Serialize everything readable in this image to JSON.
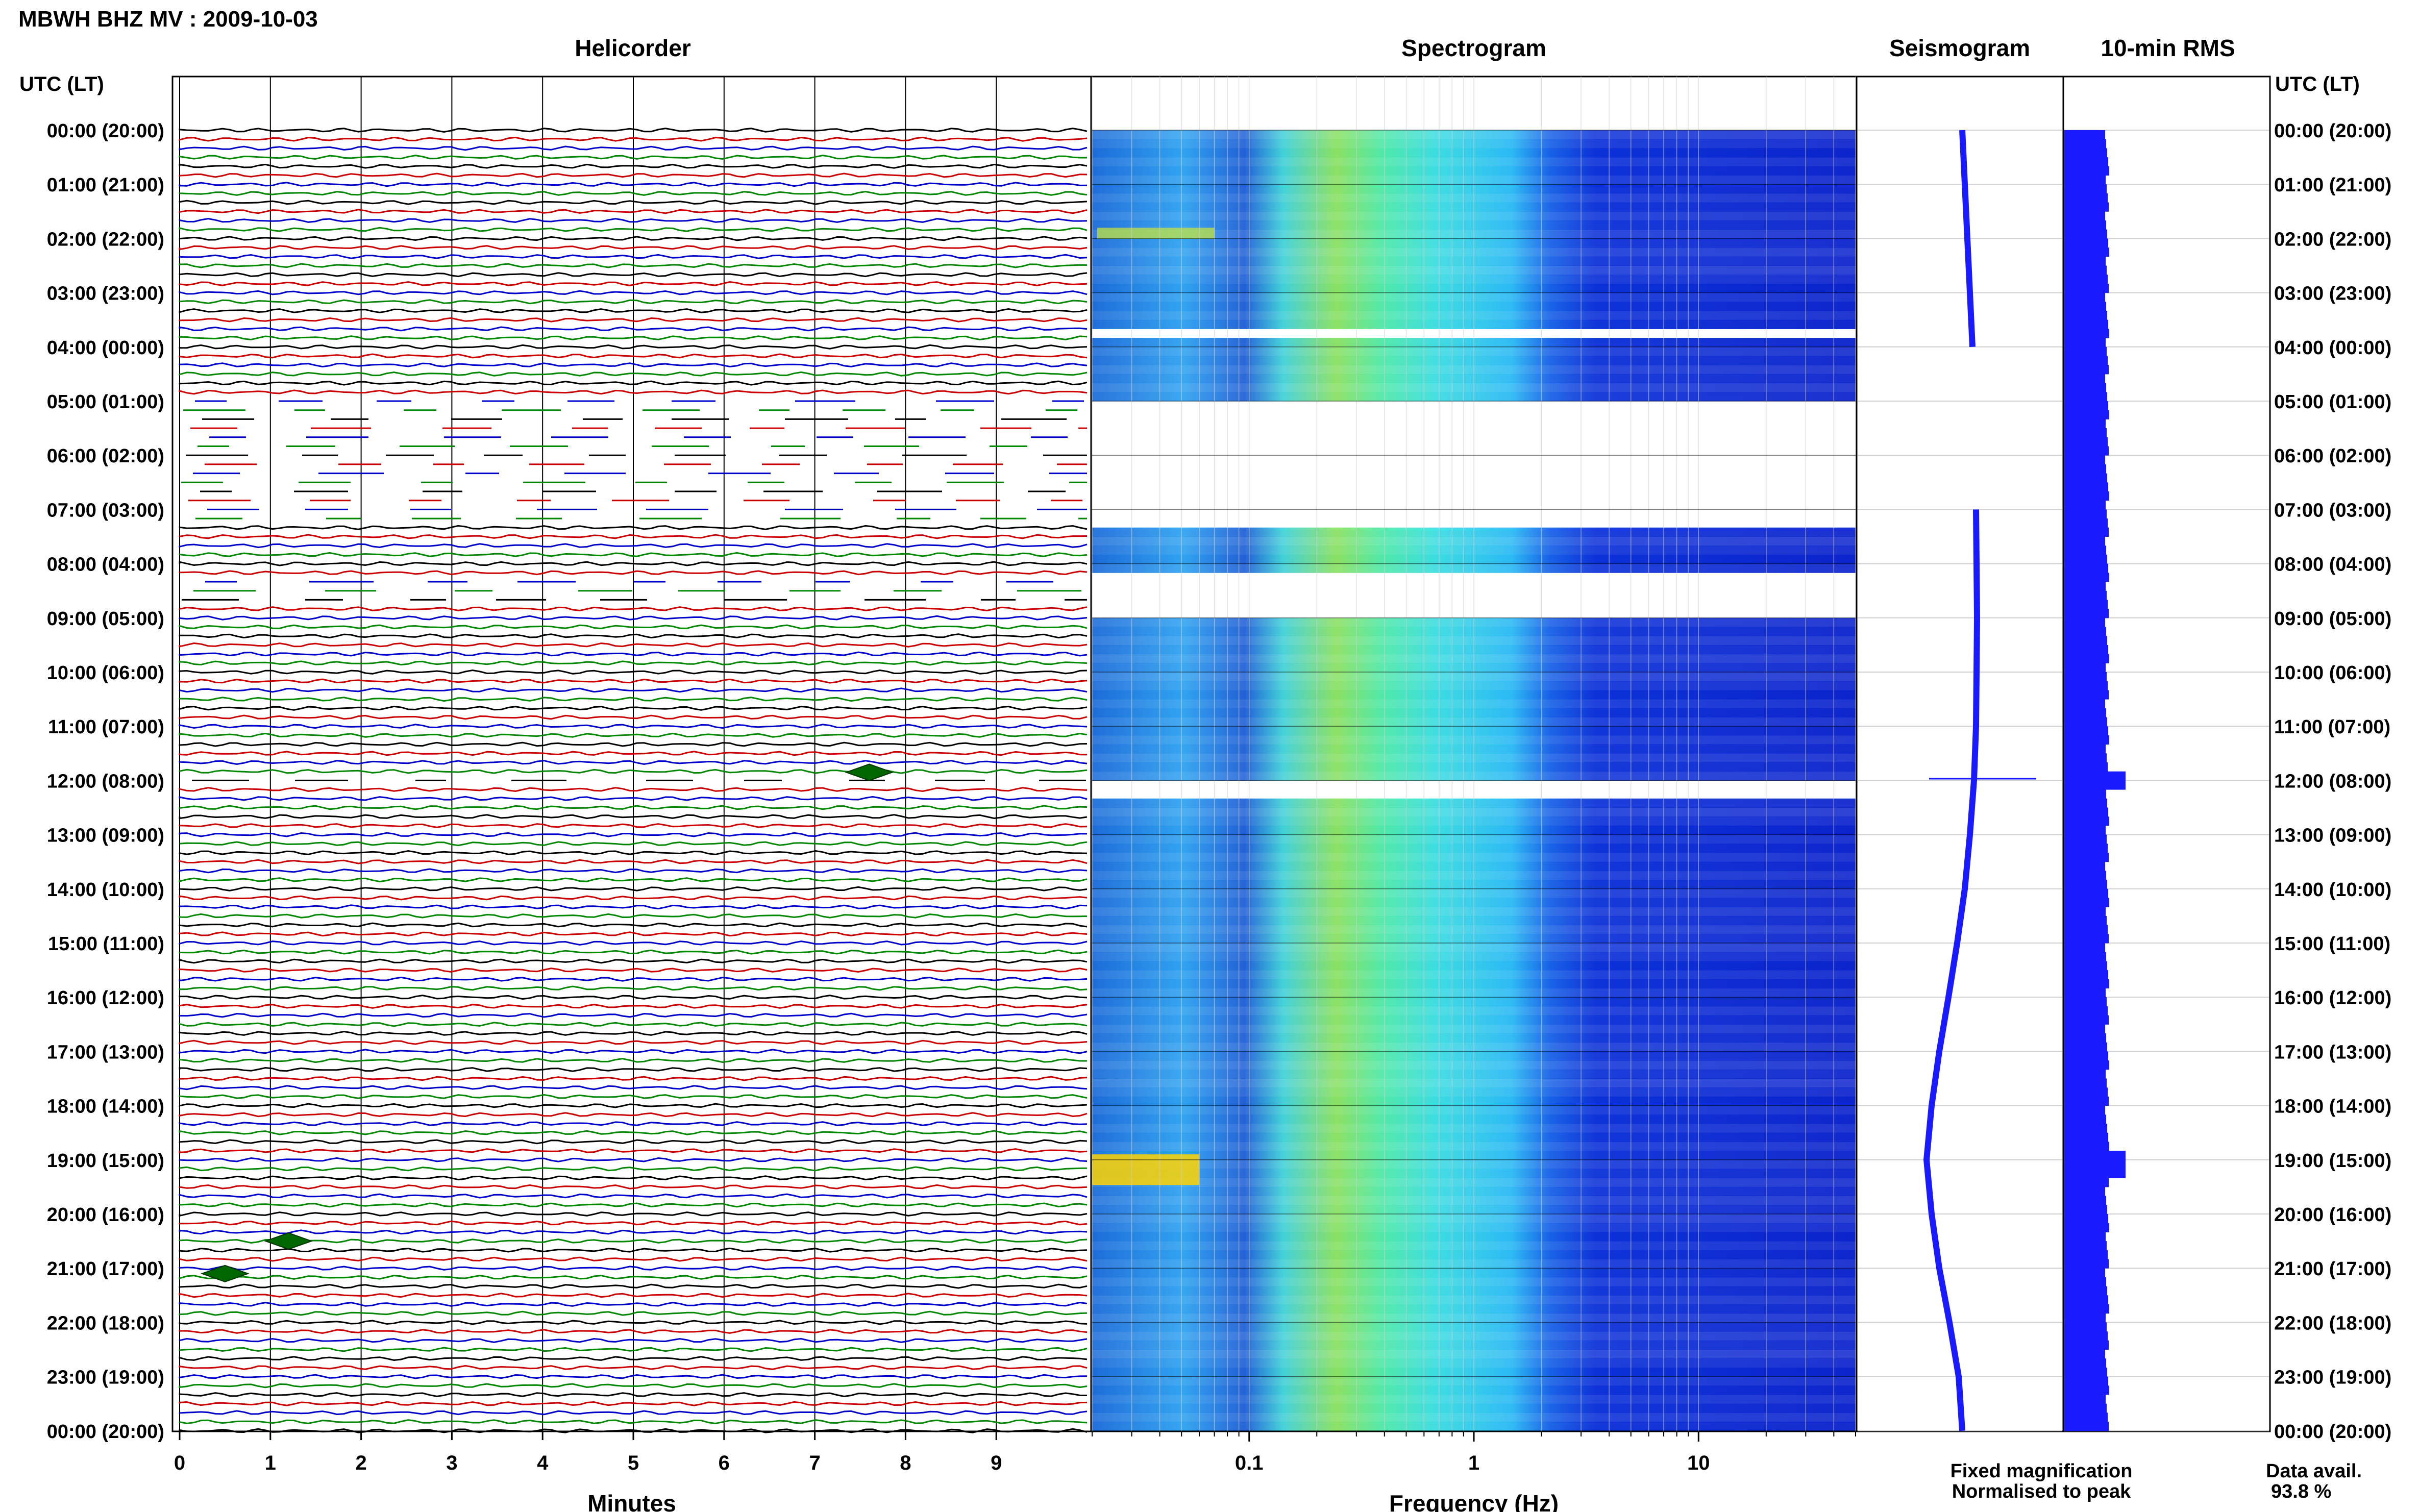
{
  "title": "MBWH BHZ MV : 2009-10-03",
  "panel_titles": {
    "helicorder": "Helicorder",
    "spectrogram": "Spectrogram",
    "seismogram": "Seismogram",
    "rms": "10-min RMS"
  },
  "axis_header_left": "UTC (LT)",
  "axis_header_right": "UTC (LT)",
  "xlabel_helicorder": "Minutes",
  "xlabel_spectrogram": "Frequency (Hz)",
  "legend": {
    "fixed": "Fixed magnification",
    "normalised": "Normalised to peak",
    "fixed_color": "#0000ff",
    "normalised_color": "#ff0000"
  },
  "data_avail": {
    "label": "Data avail.",
    "value": "93.8 %"
  },
  "colors": {
    "trace_cycle": [
      "#000000",
      "#cc0000",
      "#0000cc",
      "#008800"
    ],
    "seismogram": "#1a1aff",
    "rms": "#1a1aff"
  },
  "chart_data": [
    {
      "type": "line",
      "name": "helicorder",
      "xlabel": "Minutes",
      "x_ticks": [
        "0",
        "1",
        "2",
        "3",
        "4",
        "5",
        "6",
        "7",
        "8",
        "9"
      ],
      "xlim": [
        0,
        10
      ],
      "y_tick_labels": [
        "00:00 (20:00)",
        "01:00 (21:00)",
        "02:00 (22:00)",
        "03:00 (23:00)",
        "04:00 (00:00)",
        "05:00 (01:00)",
        "06:00 (02:00)",
        "07:00 (03:00)",
        "08:00 (04:00)",
        "09:00 (05:00)",
        "10:00 (06:00)",
        "11:00 (07:00)",
        "12:00 (08:00)",
        "13:00 (09:00)",
        "14:00 (10:00)",
        "15:00 (11:00)",
        "16:00 (12:00)",
        "17:00 (13:00)",
        "18:00 (14:00)",
        "19:00 (15:00)",
        "20:00 (16:00)",
        "21:00 (17:00)",
        "22:00 (18:00)",
        "23:00 (19:00)",
        "00:00 (20:00)"
      ],
      "traces_per_hour": 6,
      "gaps_hours": [
        [
          5.0,
          7.3
        ],
        [
          8.2,
          8.8
        ],
        [
          11.9,
          12.1
        ]
      ],
      "events": [
        {
          "hour": 11.85,
          "minute": 7.6
        },
        {
          "hour": 20.5,
          "minute": 1.2
        },
        {
          "hour": 21.1,
          "minute": 0.5
        }
      ]
    },
    {
      "type": "heatmap",
      "name": "spectrogram",
      "xlabel": "Frequency (Hz)",
      "x_ticks": [
        "0.1",
        "1",
        "10"
      ],
      "x_scale": "log",
      "xlim": [
        0.02,
        50
      ],
      "peak_frequency_hz": 0.4,
      "gaps_hours": [
        [
          3.65,
          3.75
        ],
        [
          5.0,
          7.3
        ],
        [
          8.2,
          8.9
        ],
        [
          11.9,
          12.3
        ]
      ]
    },
    {
      "type": "line",
      "name": "seismogram",
      "gaps_hours": [
        [
          12.0,
          12.0
        ]
      ]
    },
    {
      "type": "bar",
      "name": "10-min RMS",
      "spikes_hours": [
        11.95,
        19.0
      ]
    }
  ]
}
